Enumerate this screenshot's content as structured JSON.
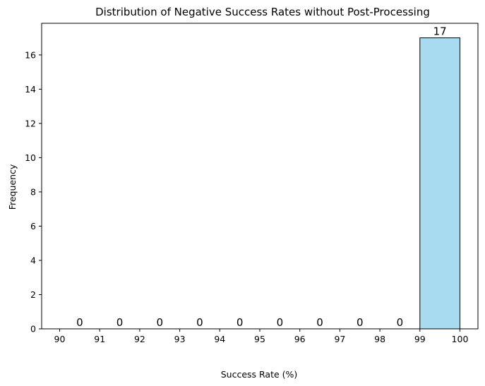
{
  "chart_data": {
    "type": "bar",
    "title": "Distribution of Negative Success Rates without Post-Processing",
    "xlabel": "Success Rate (%)",
    "ylabel": "Frequency",
    "bins": [
      {
        "start": 90,
        "end": 91,
        "count": 0
      },
      {
        "start": 91,
        "end": 92,
        "count": 0
      },
      {
        "start": 92,
        "end": 93,
        "count": 0
      },
      {
        "start": 93,
        "end": 94,
        "count": 0
      },
      {
        "start": 94,
        "end": 95,
        "count": 0
      },
      {
        "start": 95,
        "end": 96,
        "count": 0
      },
      {
        "start": 96,
        "end": 97,
        "count": 0
      },
      {
        "start": 97,
        "end": 98,
        "count": 0
      },
      {
        "start": 98,
        "end": 99,
        "count": 0
      },
      {
        "start": 99,
        "end": 100,
        "count": 17
      }
    ],
    "data_labels": [
      "0",
      "0",
      "0",
      "0",
      "0",
      "0",
      "0",
      "0",
      "0",
      "17"
    ],
    "xticks": [
      90,
      91,
      92,
      93,
      94,
      95,
      96,
      97,
      98,
      99,
      100
    ],
    "yticks": [
      0,
      2,
      4,
      6,
      8,
      10,
      12,
      14,
      16
    ],
    "xlim": [
      89.55,
      100.45
    ],
    "ylim": [
      0,
      17.85
    ],
    "grid": false,
    "bar_color": "#a8dbf0",
    "edge_color": "#000000"
  }
}
